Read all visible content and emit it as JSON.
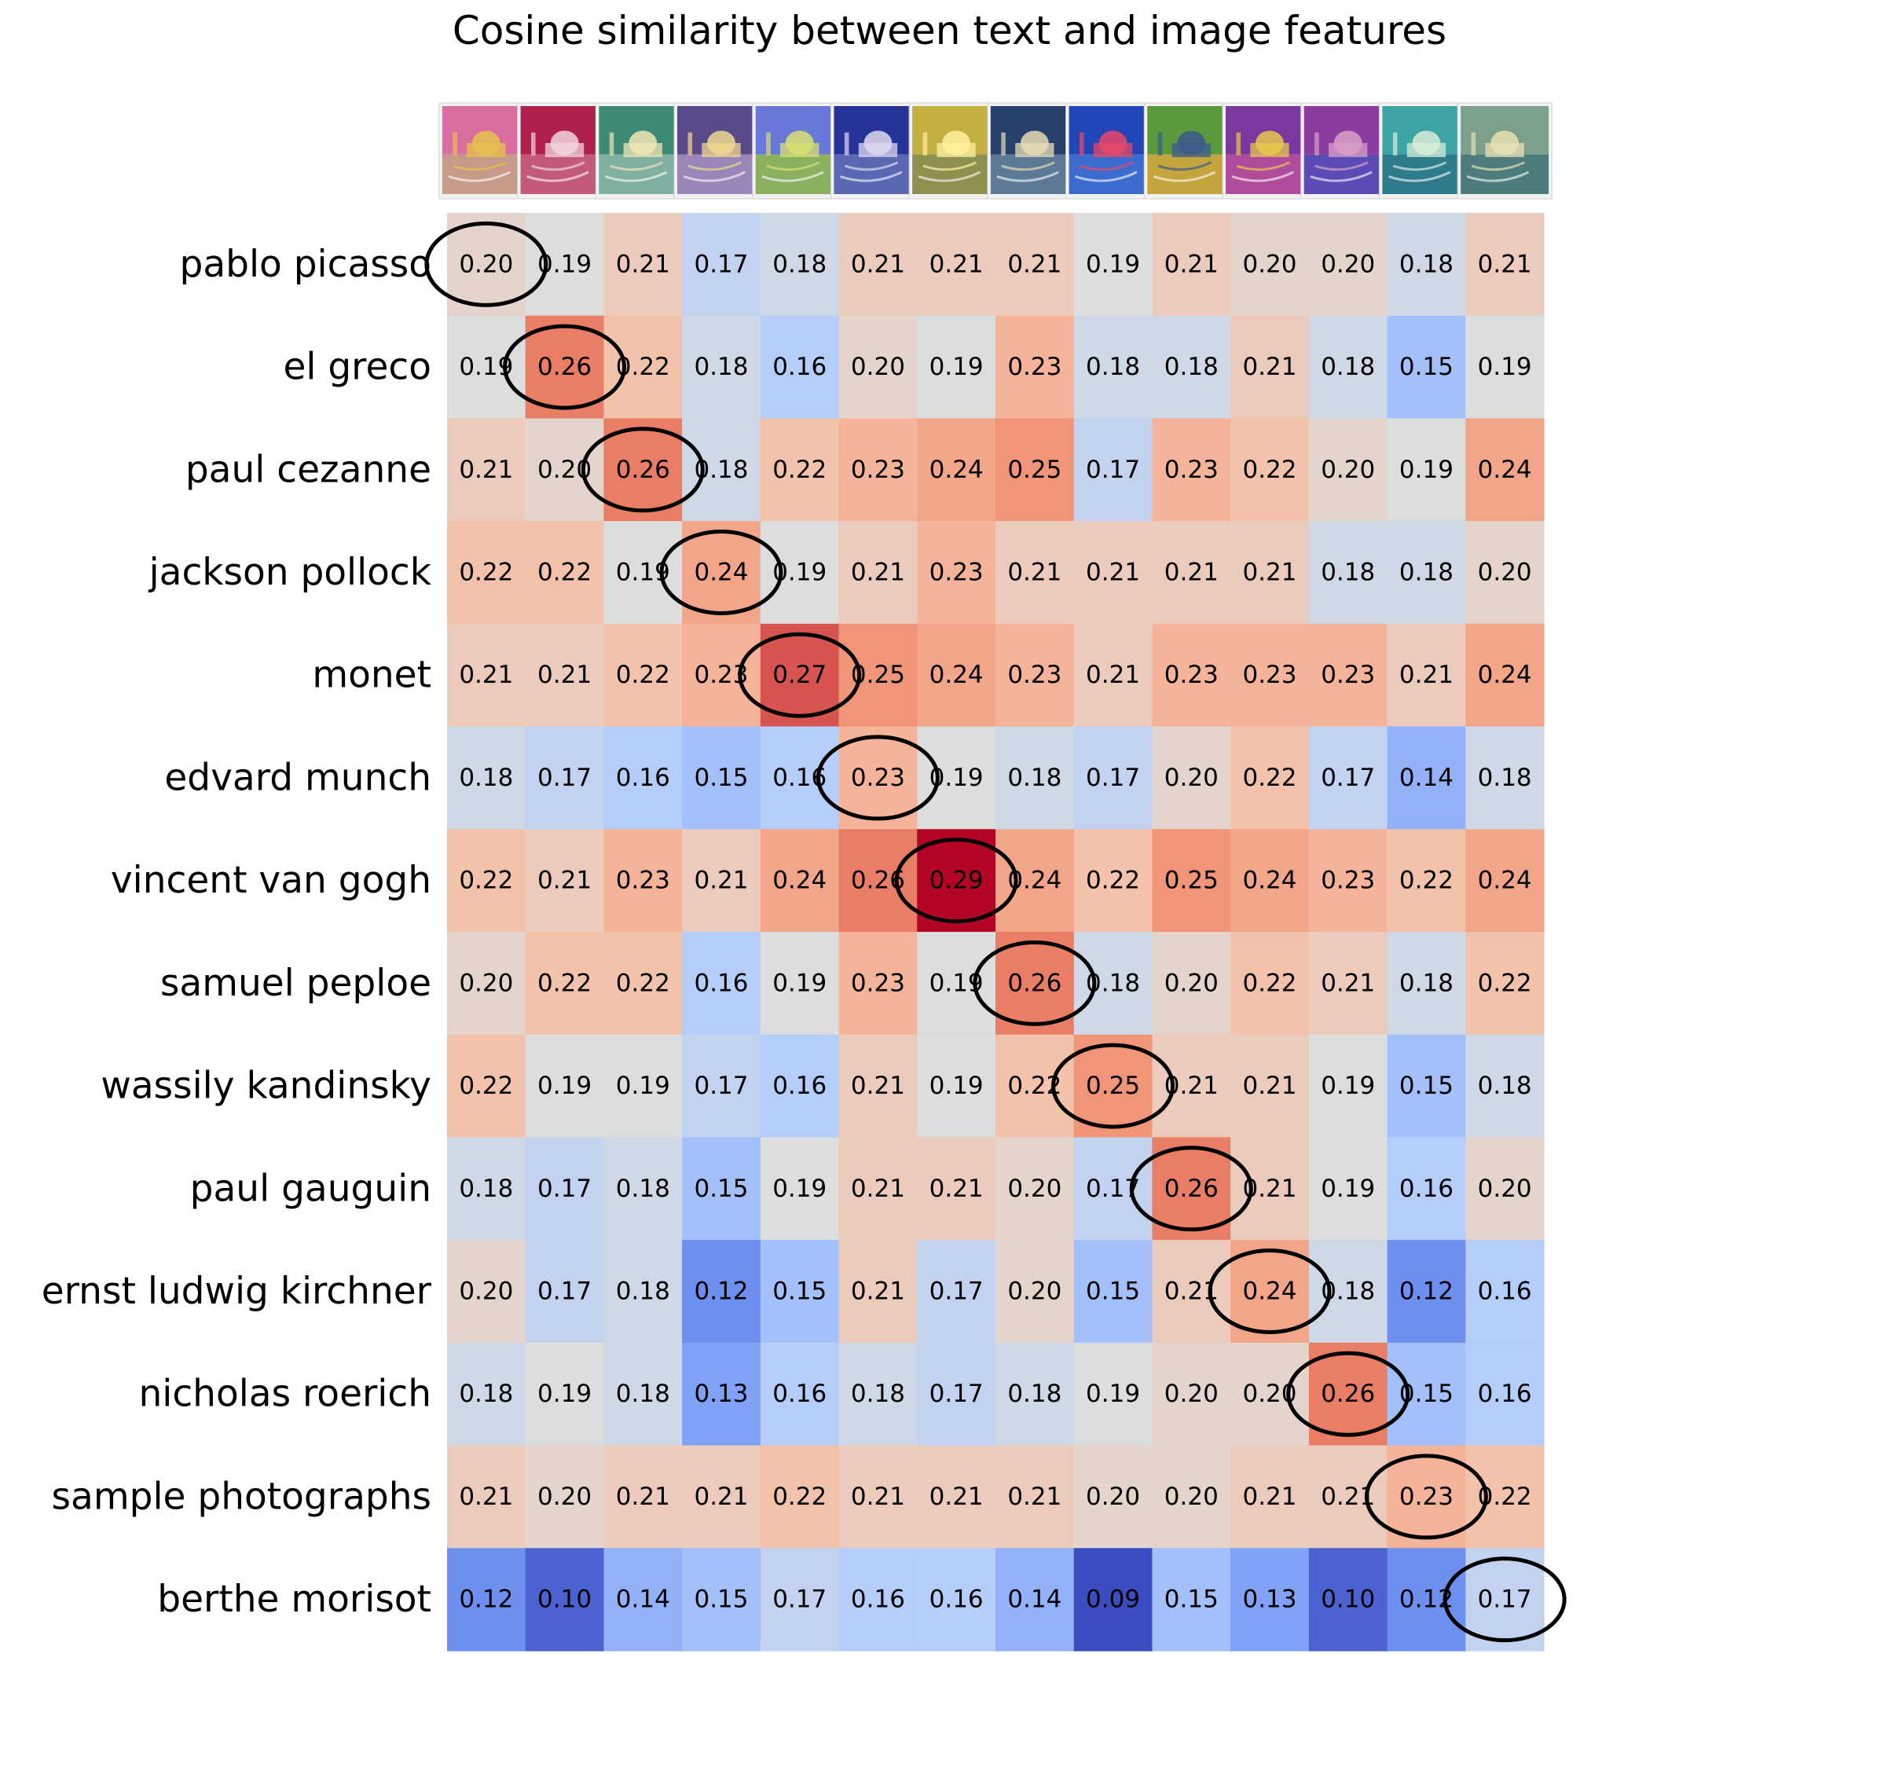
{
  "chart_data": {
    "type": "heatmap",
    "title": "Cosine similarity between text and image features",
    "rows": [
      "pablo picasso",
      "el greco",
      "paul cezanne",
      "jackson pollock",
      "monet",
      "edvard munch",
      "vincent van gogh",
      "samuel peploe",
      "wassily kandinsky",
      "paul gauguin",
      "ernst ludwig kirchner",
      "nicholas roerich",
      "sample photographs",
      "berthe morisot"
    ],
    "columns": [
      "image 1",
      "image 2",
      "image 3",
      "image 4",
      "image 5",
      "image 6",
      "image 7",
      "image 8",
      "image 9",
      "image 10",
      "image 11",
      "image 12",
      "image 13",
      "image 14"
    ],
    "column_images": [
      {
        "sky": "#d86fa0",
        "water": "#c79a8a",
        "accent": "#e6c24c"
      },
      {
        "sky": "#b0204a",
        "water": "#c25a78",
        "accent": "#f2d6de"
      },
      {
        "sky": "#3c8a74",
        "water": "#7fb0a2",
        "accent": "#f0e6b4"
      },
      {
        "sky": "#5a4a8c",
        "water": "#9a86b8",
        "accent": "#f0d890"
      },
      {
        "sky": "#6a78d8",
        "water": "#8ab060",
        "accent": "#d8e070"
      },
      {
        "sky": "#26349a",
        "water": "#5a68b4",
        "accent": "#e0d8f0"
      },
      {
        "sky": "#c4b040",
        "water": "#8e9050",
        "accent": "#fff2a0"
      },
      {
        "sky": "#28406c",
        "water": "#5a7a96",
        "accent": "#e8dcb4"
      },
      {
        "sky": "#2246b8",
        "water": "#3c6cd0",
        "accent": "#e84868"
      },
      {
        "sky": "#5a9a3c",
        "water": "#c4a43c",
        "accent": "#3c5a8c"
      },
      {
        "sky": "#7a38a0",
        "water": "#b04c9c",
        "accent": "#e8c84c"
      },
      {
        "sky": "#8c3ca0",
        "water": "#5a4cb4",
        "accent": "#d8a0c8"
      },
      {
        "sky": "#3ca4a4",
        "water": "#2c7c8c",
        "accent": "#d8ecd8"
      },
      {
        "sky": "#7ca08c",
        "water": "#4c7c7c",
        "accent": "#e8e0b4"
      }
    ],
    "values": [
      [
        0.2,
        0.19,
        0.21,
        0.17,
        0.18,
        0.21,
        0.21,
        0.21,
        0.19,
        0.21,
        0.2,
        0.2,
        0.18,
        0.21
      ],
      [
        0.19,
        0.26,
        0.22,
        0.18,
        0.16,
        0.2,
        0.19,
        0.23,
        0.18,
        0.18,
        0.21,
        0.18,
        0.15,
        0.19
      ],
      [
        0.21,
        0.2,
        0.26,
        0.18,
        0.22,
        0.23,
        0.24,
        0.25,
        0.17,
        0.23,
        0.22,
        0.2,
        0.19,
        0.24
      ],
      [
        0.22,
        0.22,
        0.19,
        0.24,
        0.19,
        0.21,
        0.23,
        0.21,
        0.21,
        0.21,
        0.21,
        0.18,
        0.18,
        0.2
      ],
      [
        0.21,
        0.21,
        0.22,
        0.23,
        0.27,
        0.25,
        0.24,
        0.23,
        0.21,
        0.23,
        0.23,
        0.23,
        0.21,
        0.24
      ],
      [
        0.18,
        0.17,
        0.16,
        0.15,
        0.16,
        0.23,
        0.19,
        0.18,
        0.17,
        0.2,
        0.22,
        0.17,
        0.14,
        0.18
      ],
      [
        0.22,
        0.21,
        0.23,
        0.21,
        0.24,
        0.26,
        0.29,
        0.24,
        0.22,
        0.25,
        0.24,
        0.23,
        0.22,
        0.24
      ],
      [
        0.2,
        0.22,
        0.22,
        0.16,
        0.19,
        0.23,
        0.19,
        0.26,
        0.18,
        0.2,
        0.22,
        0.21,
        0.18,
        0.22
      ],
      [
        0.22,
        0.19,
        0.19,
        0.17,
        0.16,
        0.21,
        0.19,
        0.22,
        0.25,
        0.21,
        0.21,
        0.19,
        0.15,
        0.18
      ],
      [
        0.18,
        0.17,
        0.18,
        0.15,
        0.19,
        0.21,
        0.21,
        0.2,
        0.17,
        0.26,
        0.21,
        0.19,
        0.16,
        0.2
      ],
      [
        0.2,
        0.17,
        0.18,
        0.12,
        0.15,
        0.21,
        0.17,
        0.2,
        0.15,
        0.21,
        0.24,
        0.18,
        0.12,
        0.16
      ],
      [
        0.18,
        0.19,
        0.18,
        0.13,
        0.16,
        0.18,
        0.17,
        0.18,
        0.19,
        0.2,
        0.2,
        0.26,
        0.15,
        0.16
      ],
      [
        0.21,
        0.2,
        0.21,
        0.21,
        0.22,
        0.21,
        0.21,
        0.21,
        0.2,
        0.2,
        0.21,
        0.21,
        0.23,
        0.22
      ],
      [
        0.12,
        0.1,
        0.14,
        0.15,
        0.17,
        0.16,
        0.16,
        0.14,
        0.09,
        0.15,
        0.13,
        0.1,
        0.12,
        0.17
      ]
    ],
    "value_range": [
      0.09,
      0.29
    ],
    "colormap": "coolwarm",
    "colormap_stops": [
      "#3b4cc0",
      "#7396f5",
      "#b0cbfc",
      "#dcdddd",
      "#f6bfa6",
      "#ef8a6c",
      "#b40426"
    ],
    "highlight": "diagonal cells circled",
    "grid": false,
    "legend": "none"
  }
}
